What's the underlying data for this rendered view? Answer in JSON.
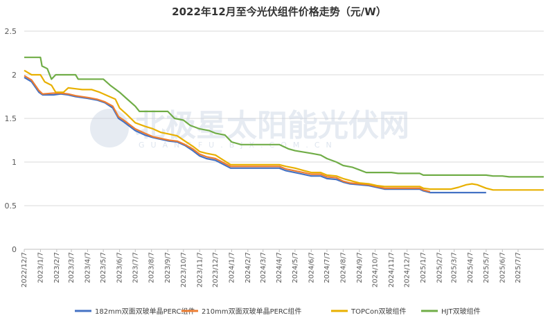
{
  "chart_data": {
    "type": "line",
    "title": "2022年12月至今光伏组件价格走势（元/W）",
    "xlabel": "",
    "ylabel": "",
    "ylim": [
      0,
      2.5
    ],
    "yticks": [
      "0",
      "0.5",
      "1",
      "1.5",
      "2",
      "2.5"
    ],
    "xlim": [
      "2022-12-07",
      "2025-08-25"
    ],
    "x_tick_labels": [
      "2022/12/7",
      "2023/1/7",
      "2023/2/7",
      "2023/3/7",
      "2023/4/7",
      "2023/5/7",
      "2023/6/7",
      "2023/7/7",
      "2023/8/7",
      "2023/9/7",
      "2023/10/7",
      "2023/11/7",
      "2023/12/7",
      "2024/1/7",
      "2024/2/7",
      "2024/3/7",
      "2024/4/7",
      "2024/5/7",
      "2024/6/7",
      "2024/7/7",
      "2024/8/7",
      "2024/9/7",
      "2024/10/7",
      "2024/11/7",
      "2024/12/7",
      "2025/1/7",
      "2025/2/7",
      "2025/3/7",
      "2025/4/7",
      "2025/5/7",
      "2025/6/7",
      "2025/7/7"
    ],
    "x_tick_dates": [
      "2022-12-07",
      "2023-01-07",
      "2023-02-07",
      "2023-03-07",
      "2023-04-07",
      "2023-05-07",
      "2023-06-07",
      "2023-07-07",
      "2023-08-07",
      "2023-09-07",
      "2023-10-07",
      "2023-11-07",
      "2023-12-07",
      "2024-01-07",
      "2024-02-07",
      "2024-03-07",
      "2024-04-07",
      "2024-05-07",
      "2024-06-07",
      "2024-07-07",
      "2024-08-07",
      "2024-09-07",
      "2024-10-07",
      "2024-11-07",
      "2024-12-07",
      "2025-01-07",
      "2025-02-07",
      "2025-03-07",
      "2025-04-07",
      "2025-05-07",
      "2025-06-07",
      "2025-07-07"
    ],
    "grid": "horizontal",
    "legend_position": "bottom",
    "watermark": "北极星太阳能光伏网",
    "watermark_sub": "GUANGFU.BJX.COM.CN",
    "series": [
      {
        "name": "182mm双面双玻单晶PERC组件",
        "color": "#4472c4",
        "points": [
          [
            "2022-12-07",
            1.97
          ],
          [
            "2022-12-21",
            1.92
          ],
          [
            "2023-01-04",
            1.8
          ],
          [
            "2023-01-11",
            1.77
          ],
          [
            "2023-02-01",
            1.77
          ],
          [
            "2023-02-15",
            1.78
          ],
          [
            "2023-03-01",
            1.77
          ],
          [
            "2023-03-15",
            1.75
          ],
          [
            "2023-04-07",
            1.73
          ],
          [
            "2023-04-25",
            1.71
          ],
          [
            "2023-05-10",
            1.68
          ],
          [
            "2023-05-25",
            1.62
          ],
          [
            "2023-06-05",
            1.5
          ],
          [
            "2023-06-15",
            1.46
          ],
          [
            "2023-07-07",
            1.36
          ],
          [
            "2023-07-25",
            1.31
          ],
          [
            "2023-08-10",
            1.28
          ],
          [
            "2023-08-25",
            1.26
          ],
          [
            "2023-09-10",
            1.24
          ],
          [
            "2023-09-25",
            1.23
          ],
          [
            "2023-10-10",
            1.19
          ],
          [
            "2023-10-25",
            1.13
          ],
          [
            "2023-11-07",
            1.07
          ],
          [
            "2023-11-20",
            1.04
          ],
          [
            "2023-12-07",
            1.02
          ],
          [
            "2023-12-20",
            0.98
          ],
          [
            "2024-01-05",
            0.93
          ],
          [
            "2024-04-07",
            0.93
          ],
          [
            "2024-04-20",
            0.9
          ],
          [
            "2024-05-15",
            0.87
          ],
          [
            "2024-06-07",
            0.84
          ],
          [
            "2024-06-25",
            0.84
          ],
          [
            "2024-07-07",
            0.81
          ],
          [
            "2024-07-25",
            0.8
          ],
          [
            "2024-08-07",
            0.77
          ],
          [
            "2024-08-20",
            0.75
          ],
          [
            "2024-09-07",
            0.74
          ],
          [
            "2024-09-25",
            0.73
          ],
          [
            "2024-10-10",
            0.71
          ],
          [
            "2024-10-25",
            0.69
          ],
          [
            "2024-12-31",
            0.69
          ],
          [
            "2025-01-07",
            0.67
          ],
          [
            "2025-01-20",
            0.65
          ],
          [
            "2025-05-07",
            0.65
          ]
        ]
      },
      {
        "name": "210mm双面双玻单晶PERC组件",
        "color": "#ed7d31",
        "points": [
          [
            "2022-12-07",
            1.99
          ],
          [
            "2022-12-21",
            1.94
          ],
          [
            "2023-01-04",
            1.82
          ],
          [
            "2023-01-11",
            1.78
          ],
          [
            "2023-02-01",
            1.79
          ],
          [
            "2023-02-15",
            1.79
          ],
          [
            "2023-03-01",
            1.78
          ],
          [
            "2023-03-15",
            1.76
          ],
          [
            "2023-04-07",
            1.74
          ],
          [
            "2023-04-25",
            1.72
          ],
          [
            "2023-05-10",
            1.69
          ],
          [
            "2023-05-25",
            1.64
          ],
          [
            "2023-06-05",
            1.52
          ],
          [
            "2023-06-15",
            1.48
          ],
          [
            "2023-07-07",
            1.38
          ],
          [
            "2023-07-25",
            1.33
          ],
          [
            "2023-08-10",
            1.29
          ],
          [
            "2023-08-25",
            1.27
          ],
          [
            "2023-09-10",
            1.25
          ],
          [
            "2023-09-25",
            1.24
          ],
          [
            "2023-10-10",
            1.2
          ],
          [
            "2023-10-25",
            1.15
          ],
          [
            "2023-11-07",
            1.09
          ],
          [
            "2023-11-20",
            1.06
          ],
          [
            "2023-12-07",
            1.04
          ],
          [
            "2023-12-20",
            1.0
          ],
          [
            "2024-01-05",
            0.95
          ],
          [
            "2024-04-07",
            0.95
          ],
          [
            "2024-04-20",
            0.92
          ],
          [
            "2024-05-15",
            0.89
          ],
          [
            "2024-06-07",
            0.86
          ],
          [
            "2024-06-25",
            0.86
          ],
          [
            "2024-07-07",
            0.83
          ],
          [
            "2024-07-25",
            0.82
          ],
          [
            "2024-08-07",
            0.78
          ],
          [
            "2024-08-20",
            0.76
          ],
          [
            "2024-09-07",
            0.75
          ],
          [
            "2024-09-25",
            0.74
          ],
          [
            "2024-10-10",
            0.72
          ],
          [
            "2024-10-25",
            0.7
          ],
          [
            "2024-12-31",
            0.7
          ],
          [
            "2025-01-07",
            0.68
          ],
          [
            "2025-01-20",
            0.66
          ]
        ]
      },
      {
        "name": "TOPCon双玻组件",
        "color": "#e8b000",
        "points": [
          [
            "2022-12-07",
            2.05
          ],
          [
            "2022-12-21",
            2.0
          ],
          [
            "2023-01-07",
            2.0
          ],
          [
            "2023-01-15",
            1.92
          ],
          [
            "2023-01-28",
            1.88
          ],
          [
            "2023-02-05",
            1.8
          ],
          [
            "2023-02-20",
            1.8
          ],
          [
            "2023-03-01",
            1.85
          ],
          [
            "2023-03-15",
            1.84
          ],
          [
            "2023-03-28",
            1.83
          ],
          [
            "2023-04-15",
            1.83
          ],
          [
            "2023-04-30",
            1.8
          ],
          [
            "2023-05-15",
            1.76
          ],
          [
            "2023-05-30",
            1.72
          ],
          [
            "2023-06-07",
            1.62
          ],
          [
            "2023-06-20",
            1.55
          ],
          [
            "2023-07-07",
            1.45
          ],
          [
            "2023-07-25",
            1.41
          ],
          [
            "2023-08-10",
            1.38
          ],
          [
            "2023-08-25",
            1.34
          ],
          [
            "2023-09-10",
            1.32
          ],
          [
            "2023-09-25",
            1.3
          ],
          [
            "2023-10-10",
            1.24
          ],
          [
            "2023-10-25",
            1.18
          ],
          [
            "2023-11-07",
            1.12
          ],
          [
            "2023-11-20",
            1.1
          ],
          [
            "2023-12-07",
            1.08
          ],
          [
            "2023-12-20",
            1.03
          ],
          [
            "2024-01-05",
            0.97
          ],
          [
            "2024-04-07",
            0.97
          ],
          [
            "2024-04-20",
            0.95
          ],
          [
            "2024-05-07",
            0.93
          ],
          [
            "2024-05-25",
            0.9
          ],
          [
            "2024-06-07",
            0.88
          ],
          [
            "2024-06-25",
            0.88
          ],
          [
            "2024-07-07",
            0.85
          ],
          [
            "2024-07-25",
            0.84
          ],
          [
            "2024-08-07",
            0.81
          ],
          [
            "2024-08-25",
            0.78
          ],
          [
            "2024-09-07",
            0.76
          ],
          [
            "2024-09-25",
            0.75
          ],
          [
            "2024-10-10",
            0.73
          ],
          [
            "2024-10-25",
            0.72
          ],
          [
            "2024-12-31",
            0.72
          ],
          [
            "2025-01-07",
            0.7
          ],
          [
            "2025-01-20",
            0.69
          ],
          [
            "2025-03-01",
            0.69
          ],
          [
            "2025-03-15",
            0.71
          ],
          [
            "2025-03-30",
            0.74
          ],
          [
            "2025-04-10",
            0.75
          ],
          [
            "2025-04-20",
            0.74
          ],
          [
            "2025-05-07",
            0.7
          ],
          [
            "2025-05-20",
            0.68
          ],
          [
            "2025-08-25",
            0.68
          ]
        ]
      },
      {
        "name": "HJT双玻组件",
        "color": "#70ad47",
        "points": [
          [
            "2022-12-07",
            2.2
          ],
          [
            "2023-01-07",
            2.2
          ],
          [
            "2023-01-10",
            2.1
          ],
          [
            "2023-01-20",
            2.07
          ],
          [
            "2023-01-28",
            1.95
          ],
          [
            "2023-02-05",
            2.0
          ],
          [
            "2023-03-15",
            2.0
          ],
          [
            "2023-03-20",
            1.95
          ],
          [
            "2023-05-07",
            1.95
          ],
          [
            "2023-05-20",
            1.88
          ],
          [
            "2023-06-07",
            1.8
          ],
          [
            "2023-06-20",
            1.73
          ],
          [
            "2023-07-07",
            1.64
          ],
          [
            "2023-07-15",
            1.58
          ],
          [
            "2023-09-07",
            1.58
          ],
          [
            "2023-09-20",
            1.5
          ],
          [
            "2023-10-07",
            1.48
          ],
          [
            "2023-10-20",
            1.42
          ],
          [
            "2023-11-07",
            1.38
          ],
          [
            "2023-11-25",
            1.36
          ],
          [
            "2023-12-07",
            1.33
          ],
          [
            "2023-12-25",
            1.31
          ],
          [
            "2024-01-07",
            1.23
          ],
          [
            "2024-01-25",
            1.2
          ],
          [
            "2024-04-07",
            1.2
          ],
          [
            "2024-04-25",
            1.15
          ],
          [
            "2024-05-07",
            1.13
          ],
          [
            "2024-06-07",
            1.1
          ],
          [
            "2024-06-25",
            1.08
          ],
          [
            "2024-07-07",
            1.04
          ],
          [
            "2024-07-25",
            1.0
          ],
          [
            "2024-08-07",
            0.96
          ],
          [
            "2024-08-25",
            0.94
          ],
          [
            "2024-09-07",
            0.91
          ],
          [
            "2024-09-20",
            0.88
          ],
          [
            "2024-11-07",
            0.88
          ],
          [
            "2024-11-20",
            0.87
          ],
          [
            "2024-12-31",
            0.87
          ],
          [
            "2025-01-07",
            0.85
          ],
          [
            "2025-05-07",
            0.85
          ],
          [
            "2025-05-20",
            0.84
          ],
          [
            "2025-06-07",
            0.84
          ],
          [
            "2025-06-20",
            0.83
          ],
          [
            "2025-08-25",
            0.83
          ]
        ]
      }
    ]
  }
}
